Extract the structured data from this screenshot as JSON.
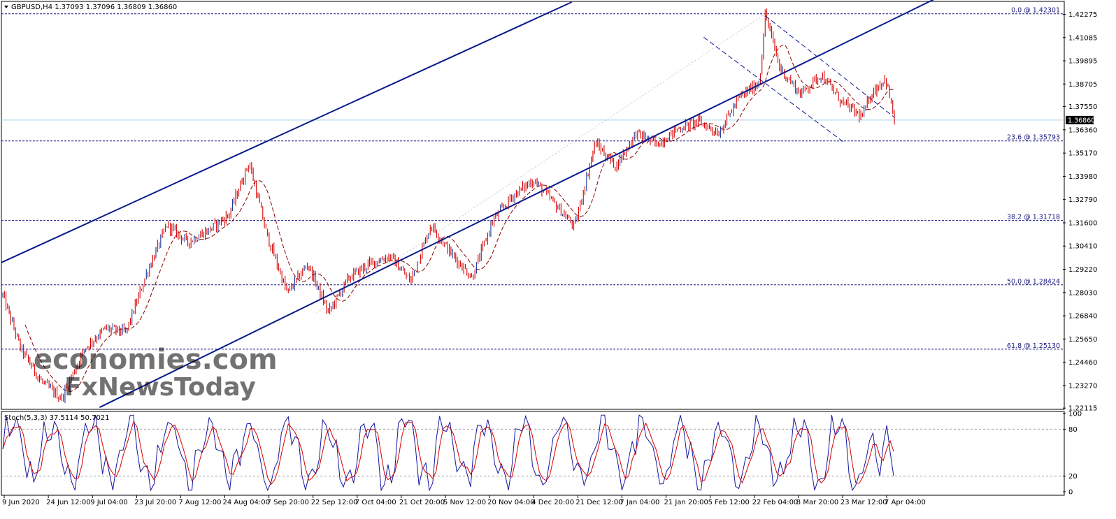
{
  "header": {
    "symbol_line": "GBPUSD,H4  1.37093 1.37096 1.36809 1.36860"
  },
  "watermark": {
    "line1": "economies.com",
    "line2": "FxNewsToday"
  },
  "chart_data": [
    {
      "type": "candlestick",
      "title": "GBPUSD,H4",
      "symbol": "GBPUSD",
      "timeframe": "H4",
      "ohlc_last": {
        "open": 1.37093,
        "high": 1.37096,
        "low": 1.36809,
        "close": 1.3686
      },
      "current_price": 1.3686,
      "current_price_label": "1.36860",
      "ylim": [
        1.2205,
        1.429
      ],
      "y_ticks": [
        "1.42275",
        "1.41085",
        "1.39895",
        "1.38705",
        "1.37550",
        "1.36360",
        "1.35170",
        "1.33980",
        "1.32790",
        "1.31600",
        "1.30410",
        "1.29220",
        "1.28030",
        "1.26840",
        "1.25650",
        "1.24460",
        "1.23270",
        "1.22115"
      ],
      "x_ticks": [
        "9 Jun 2020",
        "24 Jun 12:00",
        "9 Jul 04:00",
        "23 Jul 20:00",
        "7 Aug 12:00",
        "24 Aug 04:00",
        "7 Sep 20:00",
        "22 Sep 12:00",
        "7 Oct 04:00",
        "21 Oct 20:00",
        "5 Nov 12:00",
        "20 Nov 04:00",
        "4 Dec 20:00",
        "21 Dec 12:00",
        "7 Jan 04:00",
        "21 Jan 20:00",
        "5 Feb 12:00",
        "22 Feb 04:00",
        "8 Mar 20:00",
        "23 Mar 12:00",
        "7 Apr 04:00"
      ],
      "price_path": [
        {
          "date": "2020-06-09",
          "close": 1.279
        },
        {
          "date": "2020-06-15",
          "close": 1.252
        },
        {
          "date": "2020-06-22",
          "close": 1.235
        },
        {
          "date": "2020-06-29",
          "close": 1.226
        },
        {
          "date": "2020-07-07",
          "close": 1.252
        },
        {
          "date": "2020-07-14",
          "close": 1.262
        },
        {
          "date": "2020-07-21",
          "close": 1.26
        },
        {
          "date": "2020-07-28",
          "close": 1.29
        },
        {
          "date": "2020-08-04",
          "close": 1.315
        },
        {
          "date": "2020-08-11",
          "close": 1.306
        },
        {
          "date": "2020-08-18",
          "close": 1.312
        },
        {
          "date": "2020-08-25",
          "close": 1.32
        },
        {
          "date": "2020-09-01",
          "close": 1.347
        },
        {
          "date": "2020-09-07",
          "close": 1.31
        },
        {
          "date": "2020-09-14",
          "close": 1.28
        },
        {
          "date": "2020-09-21",
          "close": 1.295
        },
        {
          "date": "2020-09-28",
          "close": 1.27
        },
        {
          "date": "2020-10-05",
          "close": 1.288
        },
        {
          "date": "2020-10-12",
          "close": 1.295
        },
        {
          "date": "2020-10-19",
          "close": 1.299
        },
        {
          "date": "2020-10-26",
          "close": 1.286
        },
        {
          "date": "2020-11-02",
          "close": 1.315
        },
        {
          "date": "2020-11-09",
          "close": 1.3
        },
        {
          "date": "2020-11-16",
          "close": 1.288
        },
        {
          "date": "2020-11-23",
          "close": 1.317
        },
        {
          "date": "2020-11-30",
          "close": 1.33
        },
        {
          "date": "2020-12-07",
          "close": 1.338
        },
        {
          "date": "2020-12-14",
          "close": 1.326
        },
        {
          "date": "2020-12-21",
          "close": 1.314
        },
        {
          "date": "2020-12-28",
          "close": 1.357
        },
        {
          "date": "2021-01-04",
          "close": 1.345
        },
        {
          "date": "2021-01-11",
          "close": 1.362
        },
        {
          "date": "2021-01-18",
          "close": 1.356
        },
        {
          "date": "2021-01-25",
          "close": 1.364
        },
        {
          "date": "2021-02-01",
          "close": 1.368
        },
        {
          "date": "2021-02-08",
          "close": 1.362
        },
        {
          "date": "2021-02-15",
          "close": 1.38
        },
        {
          "date": "2021-02-22",
          "close": 1.388
        },
        {
          "date": "2021-02-24",
          "close": 1.423
        },
        {
          "date": "2021-03-01",
          "close": 1.395
        },
        {
          "date": "2021-03-08",
          "close": 1.382
        },
        {
          "date": "2021-03-15",
          "close": 1.392
        },
        {
          "date": "2021-03-22",
          "close": 1.378
        },
        {
          "date": "2021-03-29",
          "close": 1.37
        },
        {
          "date": "2021-04-01",
          "close": 1.382
        },
        {
          "date": "2021-04-06",
          "close": 1.39
        },
        {
          "date": "2021-04-09",
          "close": 1.3686
        }
      ],
      "fibonacci_levels": [
        {
          "label": "0.0 @ 1.42301",
          "price": 1.42301
        },
        {
          "label": "23.6 @ 1.35793",
          "price": 1.35793
        },
        {
          "label": "38.2 @ 1.31718",
          "price": 1.31718
        },
        {
          "label": "50.0 @ 1.28424",
          "price": 1.28424
        },
        {
          "label": "61.8 @ 1.25130",
          "price": 1.2513
        }
      ],
      "trendlines": {
        "channel_lower": [
          {
            "date": "2020-07-12",
            "price": 1.2215
          },
          {
            "date": "2021-04-09",
            "price": 1.4205
          }
        ],
        "channel_upper": [
          {
            "date": "2020-06-09",
            "price": 1.296
          },
          {
            "date": "2020-12-20",
            "price": 1.429
          }
        ],
        "down_channel_upper": [
          {
            "date": "2021-02-24",
            "price": 1.422
          },
          {
            "date": "2021-04-09",
            "price": 1.37
          }
        ],
        "down_channel_lower": [
          {
            "date": "2021-02-03",
            "price": 1.411
          },
          {
            "date": "2021-03-23",
            "price": 1.357
          }
        ]
      },
      "colors": {
        "candles": "#d40000",
        "channel": "#0a1a8c",
        "fib": "#1a1a80",
        "moving_average": "#8b0000",
        "current_price_line": "#a8d0e8"
      }
    },
    {
      "type": "line",
      "title": "Stoch(5,3,3) 37.5114 50.7021",
      "indicator": "Stoch(5,3,3)",
      "main_value": 37.5114,
      "signal_value": 50.7021,
      "ylim": [
        0,
        100
      ],
      "y_ticks": [
        "100",
        "80",
        "20",
        "0"
      ],
      "levels": [
        20,
        80
      ],
      "series": [
        {
          "values": [
            75,
            40,
            20,
            60,
            85,
            50,
            20
          ]
        },
        {
          "values": [
            70,
            50,
            30,
            50,
            75,
            60,
            30
          ]
        }
      ],
      "colors": {
        "main": "#1515a0",
        "signal": "#d40000"
      }
    }
  ]
}
